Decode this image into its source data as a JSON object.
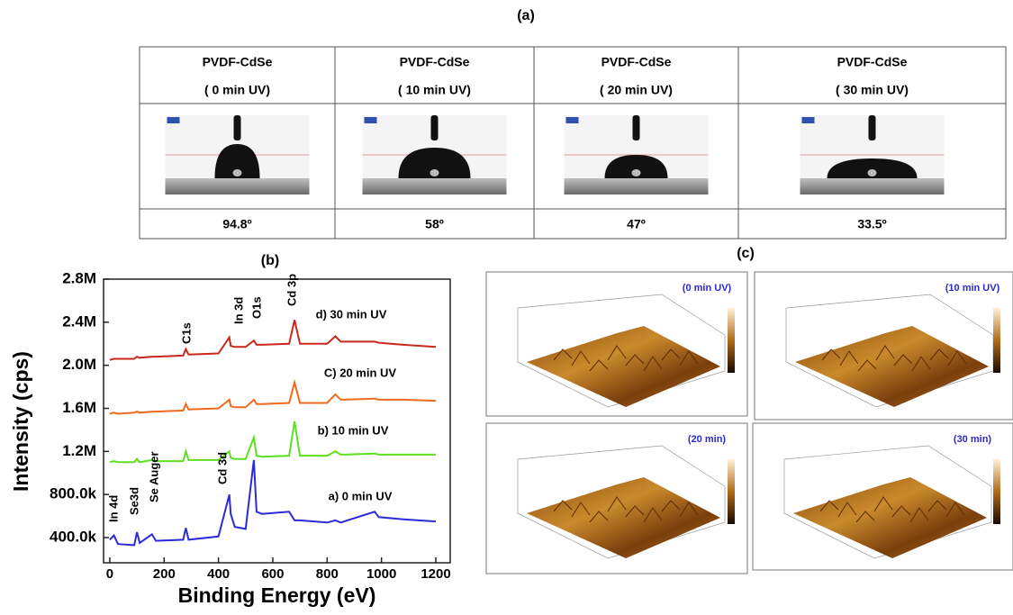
{
  "panels": {
    "a": "(a)",
    "b": "(b)",
    "c": "(c)"
  },
  "table": {
    "columns": [
      {
        "title": "PVDF-CdSe",
        "condition": "( 0 min UV)",
        "angle": "94.8º"
      },
      {
        "title": "PVDF-CdSe",
        "condition": "( 10 min UV)",
        "angle": "58º"
      },
      {
        "title": "PVDF-CdSe",
        "condition": "( 20 min UV)",
        "angle": "47º"
      },
      {
        "title": "PVDF-CdSe",
        "condition": "( 30 min UV)",
        "angle": "33.5º"
      }
    ]
  },
  "chart_data": {
    "type": "line",
    "x_label": "Binding Energy (eV)",
    "y_label": "Intensity (cps)",
    "x": [
      0,
      15,
      30,
      90,
      100,
      110,
      155,
      170,
      270,
      280,
      290,
      400,
      440,
      445,
      460,
      500,
      530,
      540,
      560,
      660,
      680,
      700,
      800,
      830,
      850,
      975,
      990,
      1080,
      1200
    ],
    "series": [
      {
        "name": "a) 0 min UV",
        "color": "#2b2bd8",
        "values": [
          380000,
          420000,
          340000,
          330000,
          450000,
          350000,
          430000,
          370000,
          380000,
          490000,
          380000,
          410000,
          800000,
          620000,
          500000,
          480000,
          1120000,
          640000,
          620000,
          640000,
          560000,
          560000,
          540000,
          560000,
          540000,
          640000,
          590000,
          570000,
          550000
        ]
      },
      {
        "name": "b) 10 min UV",
        "color": "#5ee020",
        "values": [
          1100000,
          1110000,
          1100000,
          1100000,
          1130000,
          1100000,
          1120000,
          1110000,
          1110000,
          1200000,
          1120000,
          1120000,
          1200000,
          1140000,
          1130000,
          1130000,
          1330000,
          1160000,
          1150000,
          1160000,
          1480000,
          1160000,
          1160000,
          1200000,
          1170000,
          1180000,
          1170000,
          1170000,
          1170000
        ]
      },
      {
        "name": "C) 20 min UV",
        "color": "#f06a1e",
        "values": [
          1550000,
          1560000,
          1550000,
          1560000,
          1570000,
          1560000,
          1570000,
          1570000,
          1580000,
          1640000,
          1590000,
          1600000,
          1680000,
          1620000,
          1610000,
          1610000,
          1680000,
          1640000,
          1640000,
          1650000,
          1840000,
          1650000,
          1650000,
          1730000,
          1680000,
          1690000,
          1680000,
          1680000,
          1670000
        ]
      },
      {
        "name": "d) 30 min UV",
        "color": "#c8281e",
        "values": [
          2050000,
          2060000,
          2060000,
          2060000,
          2080000,
          2070000,
          2080000,
          2080000,
          2090000,
          2150000,
          2100000,
          2110000,
          2260000,
          2180000,
          2170000,
          2170000,
          2230000,
          2190000,
          2190000,
          2200000,
          2420000,
          2200000,
          2200000,
          2270000,
          2220000,
          2220000,
          2210000,
          2190000,
          2170000
        ]
      }
    ],
    "annotations": [
      "In 4d",
      "Se3d",
      "Se Auger",
      "Cd 3d",
      "C1s",
      "In 3d",
      "O1s",
      "Cd 3p"
    ],
    "xlim": [
      -23,
      1253
    ],
    "ylim": [
      166000,
      2800000
    ],
    "xticks": [
      0,
      200,
      400,
      600,
      800,
      1000,
      1200
    ],
    "yticks": [
      {
        "value": 400000,
        "label": "400.0k"
      },
      {
        "value": 800000,
        "label": "800.0k"
      },
      {
        "value": 1200000,
        "label": "1.2M"
      },
      {
        "value": 1600000,
        "label": "1.6M"
      },
      {
        "value": 2000000,
        "label": "2.0M"
      },
      {
        "value": 2400000,
        "label": "2.4M"
      },
      {
        "value": 2800000,
        "label": "2.8M"
      }
    ]
  },
  "afm": {
    "labels": [
      "(0 min UV)",
      "(10 min UV)",
      "(20 min)",
      "(30 min)"
    ]
  }
}
